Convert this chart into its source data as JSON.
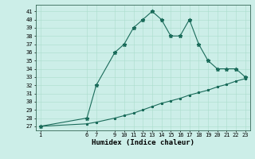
{
  "xlabel": "Humidex (Indice chaleur)",
  "background_color": "#cceee8",
  "grid_color": "#aaddcc",
  "line_color": "#1a6b5a",
  "x_main": [
    1,
    6,
    7,
    9,
    10,
    11,
    12,
    13,
    14,
    15,
    16,
    17,
    18,
    19,
    20,
    21,
    22,
    23
  ],
  "y_main": [
    27,
    28,
    32,
    36,
    37,
    39,
    40,
    41,
    40,
    38,
    38,
    40,
    37,
    35,
    34,
    34,
    34,
    33
  ],
  "x_ref": [
    1,
    6,
    7,
    9,
    10,
    11,
    12,
    13,
    14,
    15,
    16,
    17,
    18,
    19,
    20,
    21,
    22,
    23
  ],
  "y_ref": [
    27,
    27.3,
    27.5,
    28.0,
    28.3,
    28.6,
    29.0,
    29.4,
    29.8,
    30.1,
    30.4,
    30.8,
    31.1,
    31.4,
    31.8,
    32.1,
    32.5,
    32.8
  ],
  "yticks": [
    27,
    28,
    29,
    30,
    31,
    32,
    33,
    34,
    35,
    36,
    37,
    38,
    39,
    40,
    41
  ],
  "xticks": [
    1,
    6,
    7,
    9,
    10,
    11,
    12,
    13,
    14,
    15,
    16,
    17,
    18,
    19,
    20,
    21,
    22,
    23
  ],
  "ylim": [
    26.5,
    41.8
  ],
  "xlim": [
    0.5,
    23.5
  ],
  "tick_fontsize": 5.0,
  "xlabel_fontsize": 6.5,
  "marker": "*",
  "markersize": 3.5,
  "linewidth": 0.8
}
